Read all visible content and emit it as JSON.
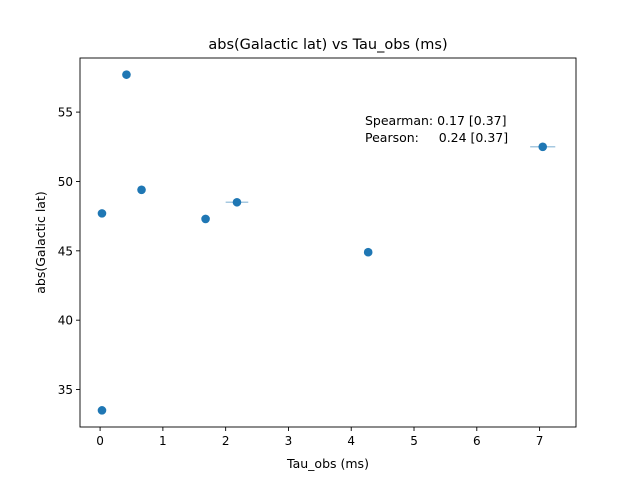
{
  "chart_data": {
    "type": "scatter",
    "title": "abs(Galactic lat) vs Tau_obs (ms)",
    "xlabel": "Tau_obs (ms)",
    "ylabel": "abs(Galactic lat)",
    "xlim": [
      -0.32,
      7.58
    ],
    "ylim": [
      32.3,
      58.9
    ],
    "xticks": [
      0,
      1,
      2,
      3,
      4,
      5,
      6,
      7
    ],
    "yticks": [
      35,
      40,
      45,
      50,
      55
    ],
    "grid": false,
    "legend": "none",
    "marker_color": "#1f77b4",
    "errorbar_color": "#a6c8e0",
    "points": [
      {
        "x": 0.42,
        "y": 57.7
      },
      {
        "x": 0.66,
        "y": 49.4
      },
      {
        "x": 0.03,
        "y": 47.7
      },
      {
        "x": 0.03,
        "y": 33.5
      },
      {
        "x": 1.68,
        "y": 47.3
      },
      {
        "x": 2.18,
        "y": 48.5,
        "xerr": 0.18
      },
      {
        "x": 4.27,
        "y": 44.9
      },
      {
        "x": 7.05,
        "y": 52.5,
        "xerr": 0.2
      }
    ],
    "annotation": [
      "Spearman: 0.17 [0.37]",
      "Pearson:     0.24 [0.37]"
    ]
  }
}
